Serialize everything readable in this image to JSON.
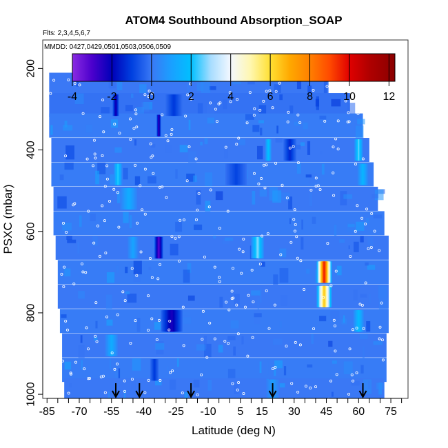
{
  "chart_data": {
    "type": "heatmap",
    "title": "ATOM4 Southbound Absorption_SOAP",
    "subtitle_flights": "Flts: 2,3,4,5,6,7",
    "subtitle_dates": "MMDD: 0427,0429,0501,0503,0506,0509",
    "xlabel": "Latitude (deg N)",
    "ylabel": "PSXC (mbar)",
    "xlim": [
      -87,
      83
    ],
    "ylim": [
      1010,
      130
    ],
    "y_reversed": true,
    "x_ticks": [
      -85,
      -70,
      -55,
      -40,
      -25,
      -10,
      5,
      15,
      30,
      45,
      60,
      75
    ],
    "x_minor_ticks": [
      -80,
      -75,
      -65,
      -60,
      -50,
      -45,
      -35,
      -30,
      -20,
      -15,
      -5,
      0,
      10,
      20,
      25,
      35,
      40,
      50,
      55,
      65,
      70,
      80
    ],
    "y_ticks": [
      200,
      400,
      600,
      800,
      1000
    ],
    "colorbar": {
      "range": [
        -4,
        12.3
      ],
      "ticks": [
        -4,
        -2,
        0,
        2,
        4,
        6,
        8,
        10,
        12
      ],
      "stops": [
        {
          "v": -4,
          "c": "#8a2be2"
        },
        {
          "v": -3,
          "c": "#4b00cc"
        },
        {
          "v": -2,
          "c": "#0000b8"
        },
        {
          "v": -1,
          "c": "#0040e0"
        },
        {
          "v": 0,
          "c": "#3a78f5"
        },
        {
          "v": 1,
          "c": "#1aa0ff"
        },
        {
          "v": 2,
          "c": "#00c0ff"
        },
        {
          "v": 3,
          "c": "#a8ddff"
        },
        {
          "v": 4,
          "c": "#f4f8ff"
        },
        {
          "v": 5,
          "c": "#fff7b0"
        },
        {
          "v": 6,
          "c": "#ffe033"
        },
        {
          "v": 7,
          "c": "#ffa800"
        },
        {
          "v": 8,
          "c": "#ff8000"
        },
        {
          "v": 9,
          "c": "#ff4a00"
        },
        {
          "v": 10,
          "c": "#e00000"
        },
        {
          "v": 11,
          "c": "#b00000"
        },
        {
          "v": 12.3,
          "c": "#8b0000"
        }
      ]
    },
    "rows": [
      {
        "p": 200,
        "lat_min": -57,
        "lat_max": -18,
        "base": 0.1
      },
      {
        "p": 240,
        "lat_min": -84,
        "lat_max": 46,
        "base": 0.0
      },
      {
        "p": 290,
        "lat_min": -84,
        "lat_max": 56,
        "base": -0.1
      },
      {
        "p": 340,
        "lat_min": -84,
        "lat_max": 62,
        "base": 0.1
      },
      {
        "p": 400,
        "lat_min": -83,
        "lat_max": 65,
        "base": 0.0
      },
      {
        "p": 460,
        "lat_min": -83,
        "lat_max": 67,
        "base": 0.1
      },
      {
        "p": 520,
        "lat_min": -82,
        "lat_max": 69,
        "base": 0.0
      },
      {
        "p": 580,
        "lat_min": -82,
        "lat_max": 72,
        "base": 0.1
      },
      {
        "p": 640,
        "lat_min": -81,
        "lat_max": 74,
        "base": 0.0
      },
      {
        "p": 700,
        "lat_min": -80,
        "lat_max": 74,
        "base": 0.1
      },
      {
        "p": 760,
        "lat_min": -80,
        "lat_max": 74,
        "base": 0.0
      },
      {
        "p": 820,
        "lat_min": -79,
        "lat_max": 74,
        "base": 0.1
      },
      {
        "p": 880,
        "lat_min": -78,
        "lat_max": 73,
        "base": 0.0
      },
      {
        "p": 940,
        "lat_min": -78,
        "lat_max": 73,
        "base": 0.1
      },
      {
        "p": 990,
        "lat_min": -77,
        "lat_max": 72,
        "base": 0.0
      }
    ],
    "features": [
      {
        "p": 290,
        "lat": -53,
        "width": 3,
        "value": -2.5
      },
      {
        "p": 290,
        "lat": -26,
        "width": 8,
        "value": -1.2
      },
      {
        "p": 340,
        "lat": -33,
        "width": 2,
        "value": -3.0
      },
      {
        "p": 400,
        "lat": 18,
        "width": 3,
        "value": 2.2
      },
      {
        "p": 400,
        "lat": 28,
        "width": 6,
        "value": -1.5
      },
      {
        "p": 400,
        "lat": 60,
        "width": 4,
        "value": 2.8
      },
      {
        "p": 460,
        "lat": -52,
        "width": 4,
        "value": 2.5
      },
      {
        "p": 460,
        "lat": 3,
        "width": 10,
        "value": -1.0
      },
      {
        "p": 460,
        "lat": 62,
        "width": 5,
        "value": 1.8
      },
      {
        "p": 520,
        "lat": -47,
        "width": 8,
        "value": 1.5
      },
      {
        "p": 640,
        "lat": -33,
        "width": 4,
        "value": -3.5
      },
      {
        "p": 640,
        "lat": -45,
        "width": 5,
        "value": 1.2
      },
      {
        "p": 640,
        "lat": 13,
        "width": 6,
        "value": 3.0
      },
      {
        "p": 700,
        "lat": 44,
        "width": 7,
        "value": 10.5
      },
      {
        "p": 760,
        "lat": 44,
        "width": 7,
        "value": 7.0
      },
      {
        "p": 820,
        "lat": -27,
        "width": 10,
        "value": -2.5
      },
      {
        "p": 820,
        "lat": 60,
        "width": 5,
        "value": 2.0
      },
      {
        "p": 880,
        "lat": -55,
        "width": 6,
        "value": 1.5
      },
      {
        "p": 940,
        "lat": -35,
        "width": 4,
        "value": -1.2
      },
      {
        "p": 990,
        "lat": 20,
        "width": 6,
        "value": 1.0
      }
    ],
    "arrows_lat": [
      -53,
      -42,
      -18,
      20,
      62
    ],
    "point_color": "#ffffff",
    "marker_color": "#000000"
  }
}
